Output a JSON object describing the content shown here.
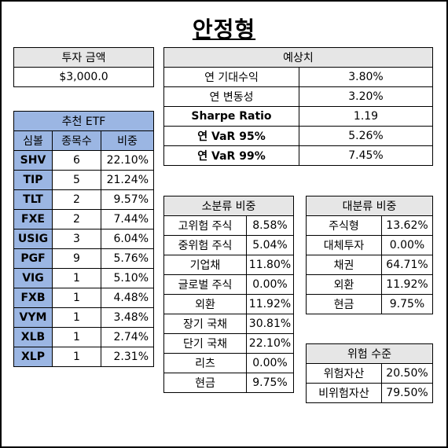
{
  "title": "안정형",
  "investment": {
    "header": "투자 금액",
    "amount": "$3,000.0"
  },
  "forecast": {
    "header": "예상치",
    "rows": [
      {
        "label": "연 기대수익",
        "value": "3.80%"
      },
      {
        "label": "연 변동성",
        "value": "3.20%"
      },
      {
        "label": "Sharpe Ratio",
        "value": "1.19"
      },
      {
        "label": "연 VaR 95%",
        "value": "5.26%"
      },
      {
        "label": "연 VaR 99%",
        "value": "7.45%"
      }
    ]
  },
  "etf": {
    "header": "추천 ETF",
    "columns": [
      "심볼",
      "종목수",
      "비중"
    ],
    "rows": [
      {
        "symbol": "SHV",
        "count": "6",
        "weight": "22.10%"
      },
      {
        "symbol": "TIP",
        "count": "5",
        "weight": "21.24%"
      },
      {
        "symbol": "TLT",
        "count": "2",
        "weight": "9.57%"
      },
      {
        "symbol": "FXE",
        "count": "2",
        "weight": "7.44%"
      },
      {
        "symbol": "USIG",
        "count": "3",
        "weight": "6.04%"
      },
      {
        "symbol": "PGF",
        "count": "9",
        "weight": "5.76%"
      },
      {
        "symbol": "VIG",
        "count": "1",
        "weight": "5.10%"
      },
      {
        "symbol": "FXB",
        "count": "1",
        "weight": "4.48%"
      },
      {
        "symbol": "VYM",
        "count": "1",
        "weight": "3.48%"
      },
      {
        "symbol": "XLB",
        "count": "1",
        "weight": "2.74%"
      },
      {
        "symbol": "XLP",
        "count": "1",
        "weight": "2.31%"
      }
    ]
  },
  "sub_class": {
    "header": "소분류 비중",
    "rows": [
      {
        "label": "고위험 주식",
        "value": "8.58%"
      },
      {
        "label": "중위험 주식",
        "value": "5.04%"
      },
      {
        "label": "기업채",
        "value": "11.80%"
      },
      {
        "label": "글로벌 주식",
        "value": "0.00%"
      },
      {
        "label": "외환",
        "value": "11.92%"
      },
      {
        "label": "장기 국채",
        "value": "30.81%"
      },
      {
        "label": "단기 국채",
        "value": "22.10%"
      },
      {
        "label": "리츠",
        "value": "0.00%"
      },
      {
        "label": "현금",
        "value": "9.75%"
      }
    ]
  },
  "main_class": {
    "header": "대분류 비중",
    "rows": [
      {
        "label": "주식형",
        "value": "13.62%"
      },
      {
        "label": "대체투자",
        "value": "0.00%"
      },
      {
        "label": "채권",
        "value": "64.71%"
      },
      {
        "label": "외환",
        "value": "11.92%"
      },
      {
        "label": "현금",
        "value": "9.75%"
      }
    ]
  },
  "risk": {
    "header": "위험 수준",
    "rows": [
      {
        "label": "위험자산",
        "value": "20.50%"
      },
      {
        "label": "비위험자산",
        "value": "79.50%"
      }
    ]
  }
}
